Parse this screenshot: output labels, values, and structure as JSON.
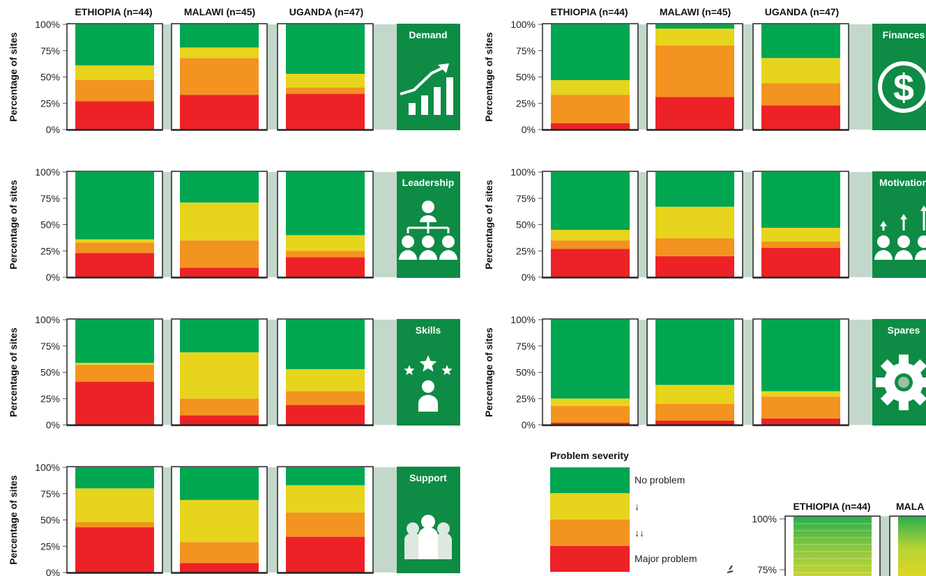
{
  "colors": {
    "no_problem": "#00A650",
    "minor": "#E7D41C",
    "moderate": "#F39320",
    "major": "#EC2227",
    "panel_bg": "#C3D8CA",
    "icon_bg": "#0E8B45"
  },
  "countries": [
    "ETHIOPIA (n=44)",
    "MALAWI (n=45)",
    "UGANDA (n=47)"
  ],
  "ylabel": "Percentage of sites",
  "yticks": [
    "100%",
    "75%",
    "50%",
    "25%",
    "0%"
  ],
  "legend": {
    "title": "Problem severity",
    "items": [
      "No problem",
      "↓",
      "↓↓",
      "Major problem"
    ]
  },
  "chart_data": [
    {
      "type": "bar",
      "stacked": true,
      "title": "Demand",
      "icon": "growth-chart-icon",
      "categories": [
        "ETHIOPIA (n=44)",
        "MALAWI (n=45)",
        "UGANDA (n=47)"
      ],
      "ylabel": "Percentage of sites",
      "ylim": [
        0,
        100
      ],
      "series": [
        {
          "name": "Major problem",
          "values": [
            27,
            33,
            34
          ]
        },
        {
          "name": "↓↓",
          "values": [
            20,
            35,
            6
          ]
        },
        {
          "name": "↓",
          "values": [
            14,
            10,
            13
          ]
        },
        {
          "name": "No problem",
          "values": [
            39,
            22,
            47
          ]
        }
      ]
    },
    {
      "type": "bar",
      "stacked": true,
      "title": "Finances",
      "icon": "dollar-icon",
      "categories": [
        "ETHIOPIA (n=44)",
        "MALAWI (n=45)",
        "UGANDA (n=47)"
      ],
      "ylabel": "Percentage of sites",
      "ylim": [
        0,
        100
      ],
      "series": [
        {
          "name": "Major problem",
          "values": [
            6,
            31,
            23
          ]
        },
        {
          "name": "↓↓",
          "values": [
            27,
            49,
            21
          ]
        },
        {
          "name": "↓",
          "values": [
            14,
            16,
            24
          ]
        },
        {
          "name": "No problem",
          "values": [
            53,
            4,
            32
          ]
        }
      ]
    },
    {
      "type": "bar",
      "stacked": true,
      "title": "Leadership",
      "icon": "org-chart-icon",
      "categories": [
        "ETHIOPIA (n=44)",
        "MALAWI (n=45)",
        "UGANDA (n=47)"
      ],
      "ylabel": "Percentage of sites",
      "ylim": [
        0,
        100
      ],
      "series": [
        {
          "name": "Major problem",
          "values": [
            23,
            9,
            19
          ]
        },
        {
          "name": "↓↓",
          "values": [
            10,
            26,
            6
          ]
        },
        {
          "name": "↓",
          "values": [
            3,
            36,
            15
          ]
        },
        {
          "name": "No problem",
          "values": [
            64,
            29,
            60
          ]
        }
      ]
    },
    {
      "type": "bar",
      "stacked": true,
      "title": "Motivation",
      "icon": "people-arrows-icon",
      "categories": [
        "ETHIOPIA (n=44)",
        "MALAWI (n=45)",
        "UGANDA (n=47)"
      ],
      "ylabel": "Percentage of sites",
      "ylim": [
        0,
        100
      ],
      "series": [
        {
          "name": "Major problem",
          "values": [
            27,
            20,
            28
          ]
        },
        {
          "name": "↓↓",
          "values": [
            8,
            17,
            6
          ]
        },
        {
          "name": "↓",
          "values": [
            10,
            30,
            13
          ]
        },
        {
          "name": "No problem",
          "values": [
            55,
            33,
            53
          ]
        }
      ]
    },
    {
      "type": "bar",
      "stacked": true,
      "title": "Skills",
      "icon": "star-person-icon",
      "categories": [
        "ETHIOPIA (n=44)",
        "MALAWI (n=45)",
        "UGANDA (n=47)"
      ],
      "ylabel": "Percentage of sites",
      "ylim": [
        0,
        100
      ],
      "series": [
        {
          "name": "Major problem",
          "values": [
            41,
            9,
            19
          ]
        },
        {
          "name": "↓↓",
          "values": [
            16,
            16,
            13
          ]
        },
        {
          "name": "↓",
          "values": [
            2,
            44,
            21
          ]
        },
        {
          "name": "No problem",
          "values": [
            41,
            31,
            47
          ]
        }
      ]
    },
    {
      "type": "bar",
      "stacked": true,
      "title": "Spares",
      "icon": "gear-icon",
      "categories": [
        "ETHIOPIA (n=44)",
        "MALAWI (n=45)",
        "UGANDA (n=47)"
      ],
      "ylabel": "Percentage of sites",
      "ylim": [
        0,
        100
      ],
      "series": [
        {
          "name": "Major problem",
          "values": [
            2,
            4,
            6
          ]
        },
        {
          "name": "↓↓",
          "values": [
            16,
            16,
            21
          ]
        },
        {
          "name": "↓",
          "values": [
            7,
            18,
            5
          ]
        },
        {
          "name": "No problem",
          "values": [
            75,
            62,
            68
          ]
        }
      ]
    },
    {
      "type": "bar",
      "stacked": true,
      "title": "Support",
      "icon": "group-icon",
      "categories": [
        "ETHIOPIA (n=44)",
        "MALAWI (n=45)",
        "UGANDA (n=47)"
      ],
      "ylabel": "Percentage of sites",
      "ylim": [
        0,
        100
      ],
      "series": [
        {
          "name": "Major problem",
          "values": [
            43,
            9,
            34
          ]
        },
        {
          "name": "↓↓",
          "values": [
            5,
            20,
            23
          ]
        },
        {
          "name": "↓",
          "values": [
            32,
            40,
            26
          ]
        },
        {
          "name": "No problem",
          "values": [
            20,
            31,
            17
          ]
        }
      ]
    },
    {
      "type": "bar",
      "stacked": true,
      "title": "",
      "partial": true,
      "categories": [
        "ETHIOPIA (n=44)",
        "MALA"
      ],
      "yticks": [
        "100%",
        "75%"
      ],
      "ylim": [
        75,
        100
      ]
    }
  ]
}
